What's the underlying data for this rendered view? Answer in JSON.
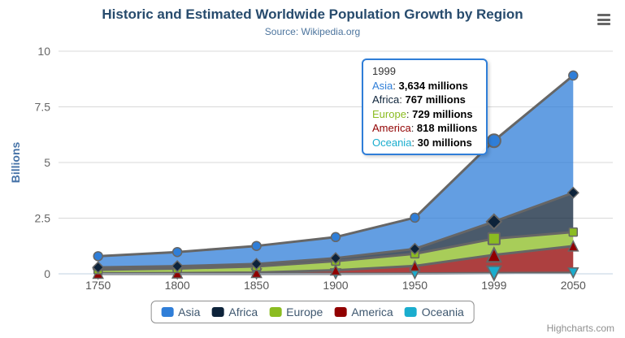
{
  "header": {
    "title": "Historic and Estimated Worldwide Population Growth by Region",
    "subtitle": "Source: Wikipedia.org"
  },
  "toolbar": {
    "menu_icon": "hamburger-icon"
  },
  "chart_data": {
    "type": "area",
    "stacking": "normal",
    "unit": "millions",
    "title": "Historic and Estimated Worldwide Population Growth by Region",
    "subtitle": "Source: Wikipedia.org",
    "categories": [
      "1750",
      "1800",
      "1850",
      "1900",
      "1950",
      "1999",
      "2050"
    ],
    "series": [
      {
        "name": "Asia",
        "color": "#2f7ed8",
        "marker_symbol": "circle",
        "values": [
          502,
          635,
          809,
          947,
          1402,
          3634,
          5268
        ]
      },
      {
        "name": "Africa",
        "color": "#0d233a",
        "marker_symbol": "diamond",
        "values": [
          106,
          107,
          111,
          133,
          221,
          767,
          1766
        ]
      },
      {
        "name": "Europe",
        "color": "#8bbc21",
        "marker_symbol": "square",
        "values": [
          163,
          203,
          276,
          408,
          547,
          729,
          628
        ]
      },
      {
        "name": "America",
        "color": "#910000",
        "marker_symbol": "triangle",
        "values": [
          18,
          31,
          54,
          156,
          339,
          818,
          1201
        ]
      },
      {
        "name": "Oceania",
        "color": "#1aadce",
        "marker_symbol": "triangle-down",
        "values": [
          2,
          2,
          2,
          6,
          13,
          30,
          46
        ]
      }
    ],
    "xlabel": "",
    "ylabel": "Billions",
    "ylim": [
      0,
      10
    ],
    "ytick_labels": [
      "0",
      "2.5",
      "5",
      "7.5",
      "10"
    ],
    "ytick_values": [
      0,
      2.5,
      5,
      7.5,
      10
    ],
    "grid": true,
    "legend_position": "bottom-center",
    "hover_category_index": 5,
    "line_color": "#666666",
    "grid_color": "#d8d8d8",
    "axis_line_color": "#c0d0e0",
    "ylabel_color": "#4572A7",
    "tick_label_color": "#666666"
  },
  "tooltip": {
    "header": "1999",
    "border_color": "#2f7ed8",
    "rows": [
      {
        "name": "Asia",
        "value": "3,634 millions",
        "color": "#2f7ed8"
      },
      {
        "name": "Africa",
        "value": "767 millions",
        "color": "#0d233a"
      },
      {
        "name": "Europe",
        "value": "729 millions",
        "color": "#8bbc21"
      },
      {
        "name": "America",
        "value": "818 millions",
        "color": "#910000"
      },
      {
        "name": "Oceania",
        "value": "30 millions",
        "color": "#1aadce"
      }
    ]
  },
  "legend": {
    "items": [
      {
        "label": "Asia",
        "color": "#2f7ed8"
      },
      {
        "label": "Africa",
        "color": "#0d233a"
      },
      {
        "label": "Europe",
        "color": "#8bbc21"
      },
      {
        "label": "America",
        "color": "#910000"
      },
      {
        "label": "Oceania",
        "color": "#1aadce"
      }
    ]
  },
  "credits": {
    "label": "Highcharts.com"
  }
}
